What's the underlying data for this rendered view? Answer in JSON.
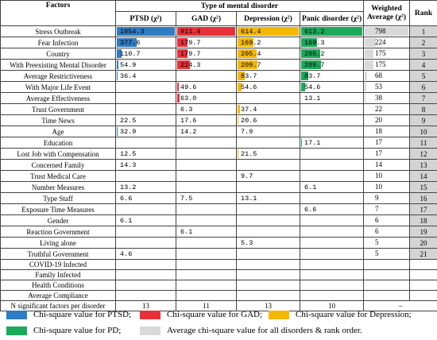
{
  "table": {
    "header": {
      "factors": "Factors",
      "group": "Type of mental disorder",
      "columns": [
        "PTSD (χ²)",
        "GAD (χ²)",
        "Depression (χ²)",
        "Panic disorder (χ²)"
      ],
      "weighted": "Weighted Average (χ²)",
      "rank": "Rank"
    },
    "colors": [
      "#2e7cc2",
      "#e8303a",
      "#f5b800",
      "#19aa5a",
      "#d9d9d9"
    ],
    "rows": [
      [
        "Stress Outbreak",
        "1054.3",
        "911.4",
        "614.4",
        "613.2",
        "798",
        "1"
      ],
      [
        "Fear Infection",
        "377.6",
        "179.7",
        "169.2",
        "169.3",
        "224",
        "2"
      ],
      [
        "Country",
        "110.7",
        "179.7",
        "205.4",
        "205.2",
        "175",
        "3"
      ],
      [
        "With Preexisting Mental Disorder",
        "54.9",
        "224.3",
        "209.7",
        "209.7",
        "175",
        "4"
      ],
      [
        "Average Restrictiveness",
        "36.4",
        null,
        "83.7",
        "83.7",
        "68",
        "5"
      ],
      [
        "With Major Life Event",
        null,
        "49.6",
        "54.6",
        "54.6",
        "53",
        "6"
      ],
      [
        "Average Effectiveness",
        null,
        "63.0",
        null,
        "13.1",
        "38",
        "7"
      ],
      [
        "Trust Government",
        null,
        "6.3",
        "37.4",
        null,
        "22",
        "8"
      ],
      [
        "Time News",
        "22.5",
        "17.6",
        "20.6",
        null,
        "20",
        "9"
      ],
      [
        "Age",
        "32.9",
        "14.2",
        "7.9",
        null,
        "18",
        "10"
      ],
      [
        "Education",
        null,
        null,
        null,
        "17.1",
        "17",
        "11"
      ],
      [
        "Lost Job with Compensation",
        "12.5",
        null,
        "21.5",
        null,
        "17",
        "12"
      ],
      [
        "Concerned Family",
        "14.3",
        null,
        null,
        null,
        "14",
        "13"
      ],
      [
        "Trust Medical Care",
        null,
        null,
        "9.7",
        null,
        "10",
        "14"
      ],
      [
        "Number Measures",
        "13.2",
        null,
        null,
        "6.1",
        "10",
        "15"
      ],
      [
        "Type Staff",
        "6.6",
        "7.5",
        "13.1",
        null,
        "9",
        "16"
      ],
      [
        "Exposure Time Measures",
        null,
        null,
        null,
        "6.6",
        "7",
        "17"
      ],
      [
        "Gender",
        "6.1",
        null,
        null,
        null,
        "6",
        "18"
      ],
      [
        "Reaction Government",
        null,
        "6.1",
        null,
        null,
        "6",
        "19"
      ],
      [
        "Living alone",
        null,
        null,
        "5.3",
        null,
        "5",
        "20"
      ],
      [
        "Truthful Government",
        "4.6",
        null,
        null,
        null,
        "5",
        "21"
      ],
      [
        "COVID-19 Infected",
        null,
        null,
        null,
        null,
        null,
        null
      ],
      [
        "Family Infected",
        null,
        null,
        null,
        null,
        null,
        null
      ],
      [
        "Health Conditions",
        null,
        null,
        null,
        null,
        null,
        null
      ],
      [
        "Average Compliance",
        null,
        null,
        null,
        null,
        null,
        null
      ]
    ],
    "footer": [
      "N significant factors per disorder",
      "13",
      "11",
      "13",
      "10",
      "–"
    ]
  },
  "legend": [
    "Chi-square value for PTSD;",
    "Chi-square value for GAD;",
    "Chi-square value for Depression;",
    "Chi-square value for PD;",
    "Average chi-square value for all disorders & rank order."
  ]
}
